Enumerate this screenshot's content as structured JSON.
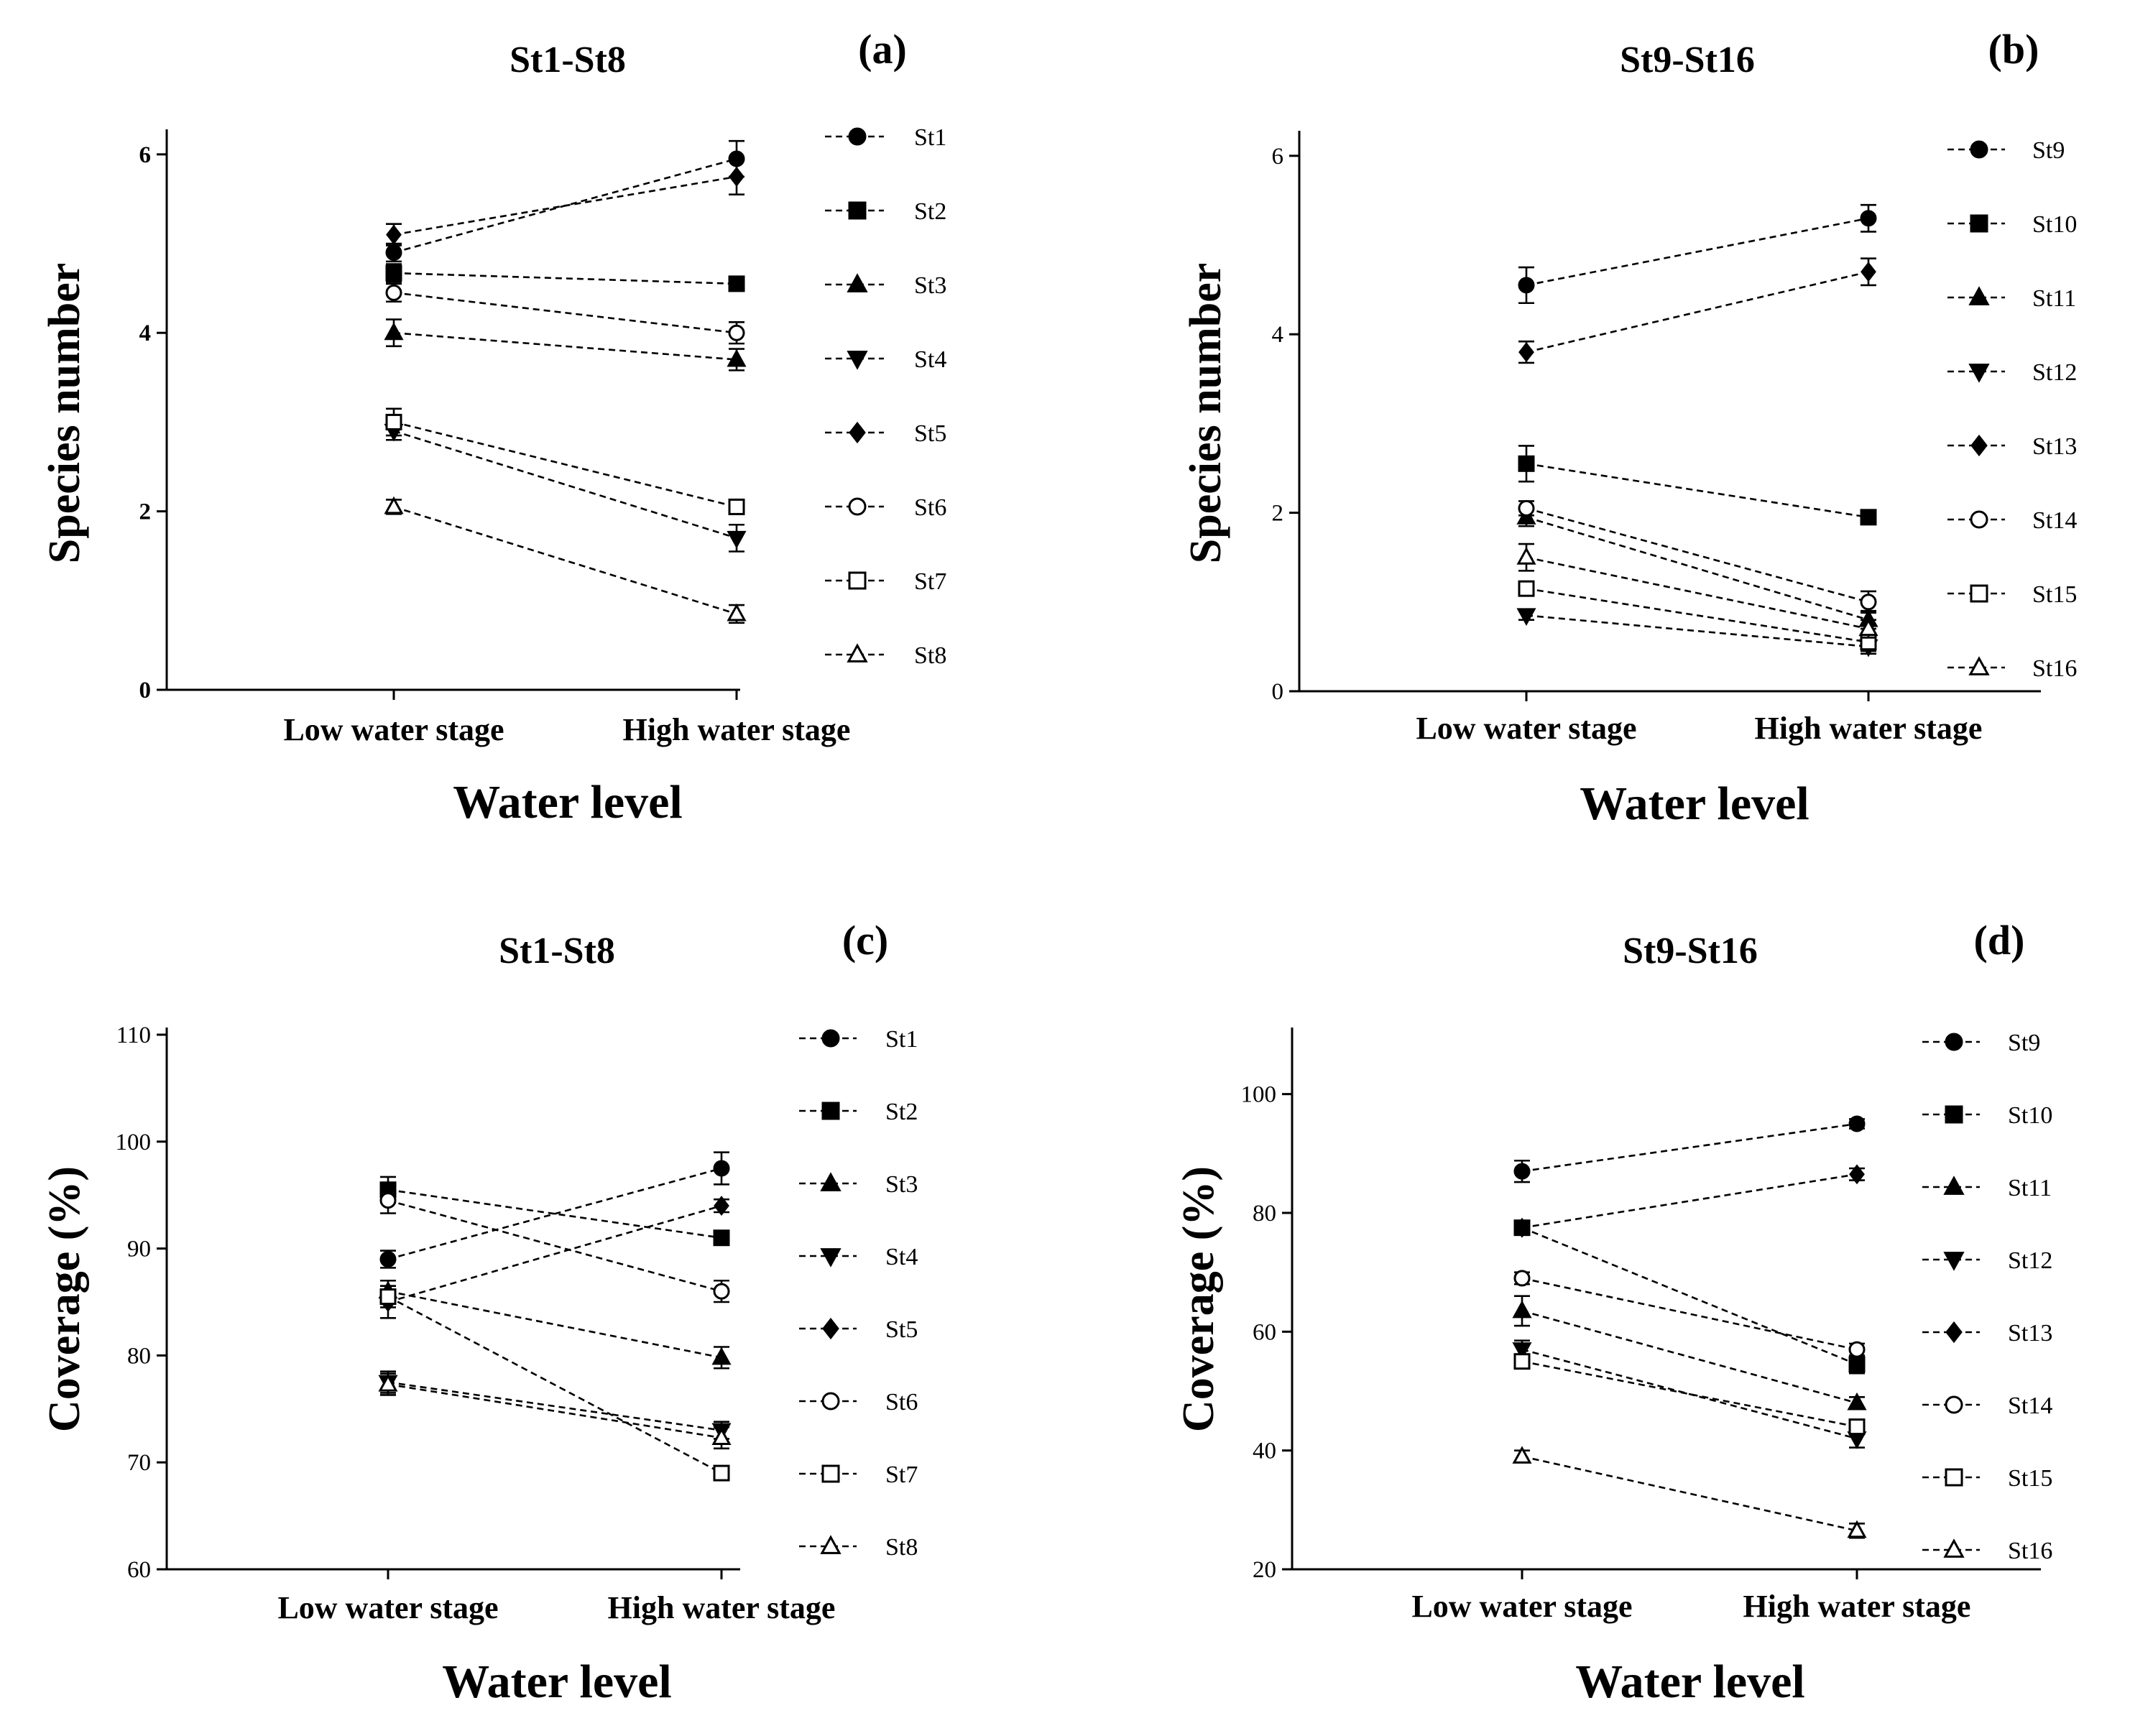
{
  "figure": {
    "marker_color": "#000000",
    "line_style": "dashed"
  },
  "chart_data": [
    {
      "panel": "(a)",
      "type": "line",
      "title": "St1-St8",
      "xlabel": "Water level",
      "ylabel": "Species number",
      "categories": [
        "Low water stage",
        "High water stage"
      ],
      "ylim": [
        0,
        6.2
      ],
      "yticks": [
        "0",
        "2",
        "4",
        "6"
      ],
      "legend_position": "right",
      "series": [
        {
          "name": "St1",
          "marker": "circle-filled",
          "values": [
            4.9,
            5.95
          ],
          "errors": [
            0.1,
            0.2
          ]
        },
        {
          "name": "St2",
          "marker": "square-filled",
          "values": [
            4.67,
            4.55
          ],
          "errors": [
            0.1,
            0.05
          ]
        },
        {
          "name": "St3",
          "marker": "triangle-up-filled",
          "values": [
            4.0,
            3.7
          ],
          "errors": [
            0.15,
            0.12
          ]
        },
        {
          "name": "St4",
          "marker": "triangle-down-filled",
          "values": [
            2.9,
            1.7
          ],
          "errors": [
            0.1,
            0.15
          ]
        },
        {
          "name": "St5",
          "marker": "diamond-filled",
          "values": [
            5.1,
            5.75
          ],
          "errors": [
            0.12,
            0.2
          ]
        },
        {
          "name": "St6",
          "marker": "circle-open",
          "values": [
            4.45,
            4.0
          ],
          "errors": [
            0.1,
            0.12
          ]
        },
        {
          "name": "St7",
          "marker": "square-open",
          "values": [
            3.0,
            2.05
          ],
          "errors": [
            0.15,
            0.08
          ]
        },
        {
          "name": "St8",
          "marker": "triangle-up-open",
          "values": [
            2.05,
            0.85
          ],
          "errors": [
            0.08,
            0.1
          ]
        }
      ]
    },
    {
      "panel": "(b)",
      "type": "line",
      "title": "St9-St16",
      "xlabel": "Water level",
      "ylabel": "Species number",
      "categories": [
        "Low water stage",
        "High water stage"
      ],
      "ylim": [
        0,
        6.2
      ],
      "yticks": [
        "0",
        "2",
        "4",
        "6"
      ],
      "legend_position": "right",
      "series": [
        {
          "name": "St9",
          "marker": "circle-filled",
          "values": [
            4.55,
            5.3
          ],
          "errors": [
            0.2,
            0.15
          ]
        },
        {
          "name": "St10",
          "marker": "square-filled",
          "values": [
            2.55,
            1.95
          ],
          "errors": [
            0.2,
            0.05
          ]
        },
        {
          "name": "St11",
          "marker": "triangle-up-filled",
          "values": [
            1.95,
            0.8
          ],
          "errors": [
            0.1,
            0.1
          ]
        },
        {
          "name": "St12",
          "marker": "triangle-down-filled",
          "values": [
            0.85,
            0.5
          ],
          "errors": [
            0.05,
            0.08
          ]
        },
        {
          "name": "St13",
          "marker": "diamond-filled",
          "values": [
            3.8,
            4.7
          ],
          "errors": [
            0.12,
            0.15
          ]
        },
        {
          "name": "St14",
          "marker": "circle-open",
          "values": [
            2.05,
            1.0
          ],
          "errors": [
            0.08,
            0.12
          ]
        },
        {
          "name": "St15",
          "marker": "square-open",
          "values": [
            1.15,
            0.55
          ],
          "errors": [
            0.05,
            0.1
          ]
        },
        {
          "name": "St16",
          "marker": "triangle-up-open",
          "values": [
            1.5,
            0.7
          ],
          "errors": [
            0.15,
            0.1
          ]
        }
      ]
    },
    {
      "panel": "(c)",
      "type": "line",
      "title": "St1-St8",
      "xlabel": "Water level",
      "ylabel": "Coverage (%)",
      "categories": [
        "Low water stage",
        "High water stage"
      ],
      "ylim": [
        60,
        110
      ],
      "yticks": [
        "60",
        "70",
        "80",
        "90",
        "100",
        "110"
      ],
      "legend_position": "right",
      "series": [
        {
          "name": "St1",
          "marker": "circle-filled",
          "values": [
            89.0,
            97.5
          ],
          "errors": [
            0.8,
            1.5
          ]
        },
        {
          "name": "St2",
          "marker": "square-filled",
          "values": [
            95.5,
            91.0
          ],
          "errors": [
            1.2,
            0.5
          ]
        },
        {
          "name": "St3",
          "marker": "triangle-up-filled",
          "values": [
            86.0,
            79.8
          ],
          "errors": [
            1.0,
            1.0
          ]
        },
        {
          "name": "St4",
          "marker": "triangle-down-filled",
          "values": [
            77.5,
            73.0
          ],
          "errors": [
            1.0,
            0.8
          ]
        },
        {
          "name": "St5",
          "marker": "diamond-filled",
          "values": [
            85.0,
            94.0
          ],
          "errors": [
            1.5,
            0.6
          ]
        },
        {
          "name": "St6",
          "marker": "circle-open",
          "values": [
            94.5,
            86.0
          ],
          "errors": [
            1.2,
            1.0
          ]
        },
        {
          "name": "St7",
          "marker": "square-open",
          "values": [
            85.5,
            69.0
          ],
          "errors": [
            1.0,
            0.5
          ]
        },
        {
          "name": "St8",
          "marker": "triangle-up-open",
          "values": [
            77.3,
            72.3
          ],
          "errors": [
            1.0,
            1.0
          ]
        }
      ]
    },
    {
      "panel": "(d)",
      "type": "line",
      "title": "St9-St16",
      "xlabel": "Water level",
      "ylabel": "Coverage (%)",
      "categories": [
        "Low water stage",
        "High water stage"
      ],
      "ylim": [
        20,
        110
      ],
      "yticks": [
        "20",
        "40",
        "60",
        "80",
        "100"
      ],
      "legend_position": "right",
      "series": [
        {
          "name": "St9",
          "marker": "circle-filled",
          "values": [
            87.0,
            95.0
          ],
          "errors": [
            1.8,
            0.8
          ]
        },
        {
          "name": "St10",
          "marker": "square-filled",
          "values": [
            77.5,
            54.5
          ],
          "errors": [
            1.2,
            1.5
          ]
        },
        {
          "name": "St11",
          "marker": "triangle-up-filled",
          "values": [
            63.5,
            48.0
          ],
          "errors": [
            2.5,
            1.0
          ]
        },
        {
          "name": "St12",
          "marker": "triangle-down-filled",
          "values": [
            57.0,
            42.0
          ],
          "errors": [
            1.5,
            1.5
          ]
        },
        {
          "name": "St13",
          "marker": "diamond-filled",
          "values": [
            77.5,
            86.5
          ],
          "errors": [
            1.0,
            1.0
          ]
        },
        {
          "name": "St14",
          "marker": "circle-open",
          "values": [
            69.0,
            57.0
          ],
          "errors": [
            1.0,
            1.0
          ]
        },
        {
          "name": "St15",
          "marker": "square-open",
          "values": [
            55.0,
            44.0
          ],
          "errors": [
            1.0,
            1.0
          ]
        },
        {
          "name": "St16",
          "marker": "triangle-up-open",
          "values": [
            39.0,
            26.5
          ],
          "errors": [
            1.0,
            1.2
          ]
        }
      ]
    }
  ]
}
